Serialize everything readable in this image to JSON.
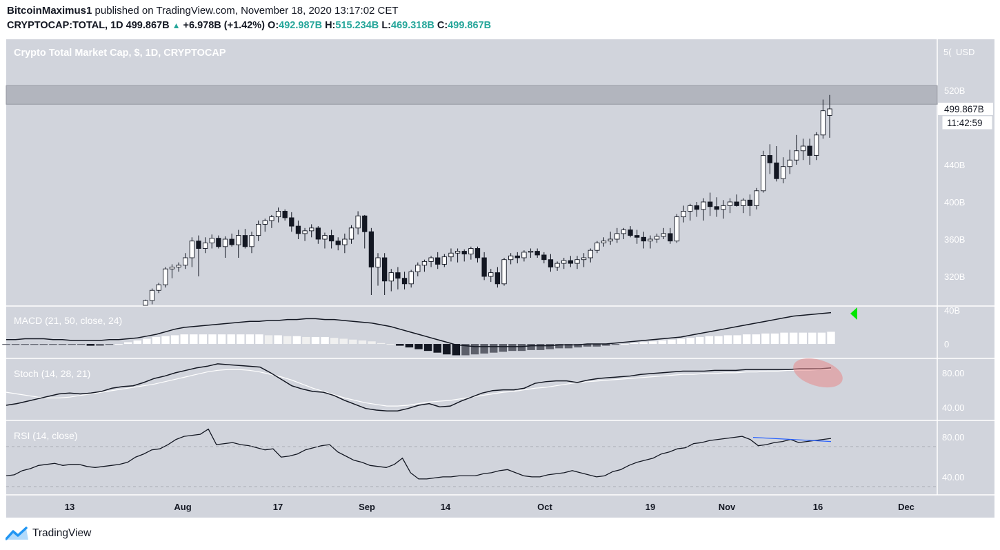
{
  "header": {
    "author": "BitcoinMaximus1",
    "published_text": "published on TradingView.com, November 18, 2020 13:17:02 CET",
    "symbol": "CRYPTOCAP:TOTAL, 1D",
    "last": "499.867B",
    "change": "+6.978B (+1.42%)",
    "o_label": "O:",
    "o_value": "492.987B",
    "h_label": "H:",
    "h_value": "515.234B",
    "l_label": "L:",
    "l_value": "469.318B",
    "c_label": "C:",
    "c_value": "499.867B"
  },
  "chart_data": {
    "type": "candlestick",
    "title": "Crypto Total Market Cap, $, 1D, CRYPTOCAP",
    "currency_label": "USD",
    "price_axis_ticks": [
      "520B",
      "440B",
      "400B",
      "360B",
      "320B"
    ],
    "price_axis_partial_top": "5(",
    "price_axis_partial_bottom": "40B",
    "last_price_label": "499.867B",
    "countdown_label": "11:42:59",
    "x_ticks": [
      "13",
      "Aug",
      "17",
      "Sep",
      "14",
      "Oct",
      "19",
      "Nov",
      "16",
      "Dec"
    ],
    "resistance_zone": [
      505,
      525
    ],
    "candles": [
      [
        272,
        275,
        271,
        274
      ],
      [
        274,
        278,
        273,
        277
      ],
      [
        277,
        285,
        276,
        283
      ],
      [
        283,
        295,
        282,
        294
      ],
      [
        294,
        307,
        290,
        305
      ],
      [
        305,
        313,
        302,
        311
      ],
      [
        311,
        330,
        308,
        328
      ],
      [
        328,
        333,
        318,
        330
      ],
      [
        330,
        335,
        325,
        332
      ],
      [
        332,
        345,
        328,
        340
      ],
      [
        340,
        362,
        330,
        358
      ],
      [
        358,
        364,
        320,
        350
      ],
      [
        350,
        362,
        345,
        356
      ],
      [
        356,
        365,
        350,
        361
      ],
      [
        361,
        364,
        350,
        352
      ],
      [
        352,
        363,
        340,
        360
      ],
      [
        360,
        366,
        352,
        354
      ],
      [
        354,
        370,
        340,
        364
      ],
      [
        364,
        371,
        350,
        352
      ],
      [
        352,
        368,
        345,
        364
      ],
      [
        364,
        380,
        358,
        376
      ],
      [
        376,
        382,
        368,
        380
      ],
      [
        380,
        386,
        372,
        384
      ],
      [
        384,
        394,
        378,
        390
      ],
      [
        390,
        392,
        380,
        383
      ],
      [
        383,
        389,
        368,
        374
      ],
      [
        374,
        380,
        360,
        366
      ],
      [
        366,
        372,
        358,
        369
      ],
      [
        369,
        376,
        362,
        372
      ],
      [
        372,
        374,
        355,
        360
      ],
      [
        360,
        367,
        350,
        364
      ],
      [
        364,
        370,
        350,
        358
      ],
      [
        358,
        362,
        348,
        354
      ],
      [
        354,
        366,
        345,
        360
      ],
      [
        360,
        375,
        355,
        372
      ],
      [
        372,
        390,
        365,
        385
      ],
      [
        385,
        386,
        350,
        368
      ],
      [
        368,
        372,
        300,
        330
      ],
      [
        330,
        345,
        310,
        340
      ],
      [
        340,
        345,
        300,
        315
      ],
      [
        315,
        328,
        304,
        324
      ],
      [
        324,
        330,
        306,
        318
      ],
      [
        318,
        325,
        306,
        312
      ],
      [
        312,
        327,
        308,
        325
      ],
      [
        325,
        335,
        320,
        332
      ],
      [
        332,
        338,
        325,
        336
      ],
      [
        336,
        342,
        330,
        340
      ],
      [
        340,
        346,
        328,
        333
      ],
      [
        333,
        344,
        330,
        341
      ],
      [
        341,
        350,
        336,
        345
      ],
      [
        345,
        350,
        335,
        347
      ],
      [
        347,
        349,
        336,
        344
      ],
      [
        344,
        352,
        338,
        350
      ],
      [
        350,
        352,
        335,
        340
      ],
      [
        340,
        346,
        316,
        320
      ],
      [
        320,
        328,
        314,
        324
      ],
      [
        324,
        330,
        308,
        312
      ],
      [
        312,
        340,
        310,
        338
      ],
      [
        338,
        345,
        333,
        342
      ],
      [
        342,
        346,
        334,
        340
      ],
      [
        340,
        348,
        336,
        346
      ],
      [
        346,
        350,
        340,
        347
      ],
      [
        347,
        350,
        340,
        343
      ],
      [
        343,
        346,
        334,
        338
      ],
      [
        338,
        344,
        325,
        330
      ],
      [
        330,
        336,
        326,
        334
      ],
      [
        334,
        340,
        328,
        337
      ],
      [
        337,
        342,
        330,
        334
      ],
      [
        334,
        342,
        328,
        338
      ],
      [
        338,
        345,
        330,
        340
      ],
      [
        340,
        350,
        335,
        348
      ],
      [
        348,
        358,
        345,
        356
      ],
      [
        356,
        362,
        352,
        358
      ],
      [
        358,
        368,
        354,
        360
      ],
      [
        360,
        372,
        356,
        366
      ],
      [
        366,
        372,
        360,
        370
      ],
      [
        370,
        374,
        362,
        364
      ],
      [
        364,
        370,
        355,
        362
      ],
      [
        362,
        368,
        350,
        358
      ],
      [
        358,
        364,
        350,
        360
      ],
      [
        360,
        366,
        356,
        363
      ],
      [
        363,
        372,
        360,
        366
      ],
      [
        366,
        372,
        355,
        358
      ],
      [
        358,
        387,
        356,
        384
      ],
      [
        384,
        396,
        378,
        390
      ],
      [
        390,
        398,
        380,
        396
      ],
      [
        396,
        400,
        384,
        392
      ],
      [
        392,
        404,
        380,
        400
      ],
      [
        400,
        410,
        385,
        395
      ],
      [
        395,
        405,
        384,
        392
      ],
      [
        392,
        402,
        382,
        396
      ],
      [
        396,
        404,
        388,
        400
      ],
      [
        400,
        408,
        395,
        396
      ],
      [
        396,
        404,
        388,
        402
      ],
      [
        402,
        408,
        385,
        396
      ],
      [
        396,
        415,
        392,
        412
      ],
      [
        412,
        455,
        410,
        450
      ],
      [
        450,
        462,
        430,
        442
      ],
      [
        442,
        460,
        422,
        425
      ],
      [
        425,
        448,
        420,
        438
      ],
      [
        438,
        456,
        430,
        445
      ],
      [
        445,
        472,
        440,
        455
      ],
      [
        455,
        468,
        445,
        460
      ],
      [
        460,
        468,
        440,
        450
      ],
      [
        450,
        475,
        445,
        472
      ],
      [
        472,
        510,
        468,
        498
      ],
      [
        493,
        515,
        469,
        500
      ]
    ],
    "macd": {
      "label": "MACD (21, 50, close, 24)",
      "ticks": [
        "40B",
        "0"
      ],
      "ylim": [
        -15,
        42
      ],
      "macd": [
        5,
        5,
        6,
        6,
        6,
        5,
        5,
        4,
        4,
        4,
        4,
        5,
        5,
        6,
        7,
        9,
        11,
        14,
        17,
        19,
        20,
        21,
        22,
        23,
        24,
        25,
        26,
        26,
        27,
        27,
        28,
        28,
        29,
        29,
        28,
        28,
        27,
        26,
        25,
        24,
        22,
        20,
        17,
        14,
        11,
        8,
        5,
        2,
        -1,
        -2,
        -3,
        -3,
        -3,
        -3,
        -3,
        -3,
        -2,
        -2,
        -2,
        -1,
        -1,
        -1,
        0,
        0,
        0,
        1,
        2,
        3,
        4,
        5,
        6,
        7,
        8,
        10,
        12,
        14,
        16,
        18,
        20,
        22,
        24,
        26,
        28,
        30,
        32,
        33,
        34,
        35,
        36
      ],
      "hist": [
        -1,
        -1,
        -1,
        -1,
        -1,
        -1,
        -1,
        -1,
        -1,
        -2,
        -2,
        -1,
        0,
        2,
        4,
        6,
        8,
        9,
        10,
        11,
        11,
        11,
        11,
        11,
        11,
        11,
        11,
        11,
        10,
        10,
        9,
        9,
        8,
        8,
        8,
        7,
        6,
        5,
        4,
        3,
        1,
        0,
        -2,
        -4,
        -6,
        -8,
        -10,
        -12,
        -13,
        -13,
        -12,
        -11,
        -10,
        -9,
        -8,
        -8,
        -7,
        -7,
        -6,
        -5,
        -5,
        -4,
        -3,
        -3,
        -2,
        -1,
        0,
        1,
        2,
        3,
        4,
        5,
        6,
        7,
        8,
        9,
        9,
        10,
        10,
        11,
        11,
        12,
        12,
        13,
        13,
        13,
        13,
        13,
        14
      ]
    },
    "stoch": {
      "label": "Stoch (14, 28, 21)",
      "ticks": [
        "80.00",
        "40.00"
      ],
      "ylim": [
        25,
        98
      ],
      "k": [
        42,
        44,
        47,
        50,
        53,
        56,
        57,
        56,
        57,
        59,
        63,
        65,
        66,
        70,
        75,
        78,
        82,
        85,
        88,
        90,
        93,
        92,
        91,
        90,
        89,
        82,
        74,
        66,
        62,
        59,
        58,
        54,
        48,
        43,
        38,
        36,
        35,
        35,
        38,
        42,
        44,
        40,
        41,
        47,
        52,
        57,
        60,
        61,
        61,
        63,
        69,
        71,
        72,
        72,
        70,
        73,
        75,
        76,
        77,
        78,
        80,
        81,
        82,
        83,
        84,
        84,
        84,
        85,
        85,
        85,
        86,
        86,
        86,
        86,
        86,
        87,
        87,
        87,
        88
      ],
      "d": [
        58,
        56,
        54,
        52,
        51,
        51,
        52,
        54,
        56,
        58,
        60,
        62,
        64,
        66,
        68,
        71,
        74,
        77,
        80,
        83,
        85,
        86,
        86,
        85,
        83,
        80,
        77,
        73,
        68,
        63,
        59,
        55,
        51,
        48,
        45,
        43,
        41,
        41,
        42,
        44,
        46,
        47,
        48,
        50,
        52,
        54,
        56,
        58,
        59,
        61,
        63,
        64,
        66,
        68,
        70,
        71,
        72,
        73,
        74,
        75,
        76,
        77,
        78,
        79,
        80,
        80,
        81,
        81,
        82,
        82,
        83,
        83,
        84,
        84,
        85,
        85,
        85,
        86,
        86
      ]
    },
    "rsi": {
      "label": "RSI (14, close)",
      "ticks": [
        "80.00",
        "40.00"
      ],
      "ylim": [
        28,
        97
      ],
      "values": [
        45,
        46,
        50,
        52,
        55,
        56,
        57,
        55,
        56,
        56,
        54,
        53,
        54,
        55,
        56,
        58,
        63,
        66,
        70,
        71,
        75,
        80,
        83,
        84,
        85,
        90,
        75,
        76,
        77,
        75,
        74,
        72,
        70,
        71,
        63,
        64,
        66,
        70,
        72,
        74,
        75,
        68,
        64,
        60,
        58,
        55,
        54,
        53,
        56,
        62,
        48,
        42,
        42,
        43,
        44,
        44,
        45,
        45,
        45,
        47,
        48,
        50,
        51,
        48,
        45,
        44,
        44,
        46,
        47,
        48,
        50,
        48,
        46,
        44,
        45,
        49,
        51,
        55,
        58,
        60,
        62,
        66,
        68,
        71,
        72,
        76,
        77,
        79,
        80,
        81,
        82,
        83,
        80,
        74,
        75,
        77,
        78,
        80,
        77,
        78,
        79,
        80,
        81
      ],
      "divergence": [
        82,
        78
      ]
    }
  },
  "brand": {
    "name": "TradingView"
  }
}
